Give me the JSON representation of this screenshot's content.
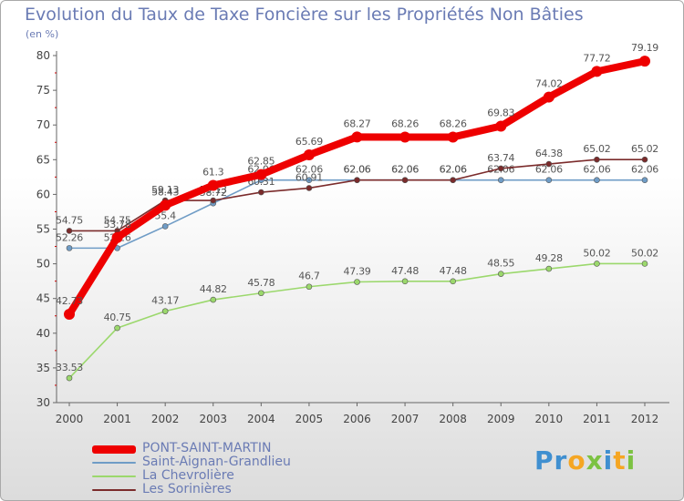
{
  "chart_data": {
    "type": "line",
    "title": "Evolution du Taux de Taxe Foncière sur les Propriétés Non Bâties",
    "ylabel": "(en %)",
    "xlabel": "",
    "ylim": [
      30,
      80
    ],
    "yticks": [
      30,
      35,
      40,
      45,
      50,
      55,
      60,
      65,
      70,
      75,
      80
    ],
    "categories": [
      "2000",
      "2001",
      "2002",
      "2003",
      "2004",
      "2005",
      "2006",
      "2007",
      "2008",
      "2009",
      "2010",
      "2011",
      "2012"
    ],
    "series": [
      {
        "name": "Saint-Aignan-Grandlieu",
        "color": "#6f9cc6",
        "values": [
          52.26,
          52.26,
          55.4,
          58.72,
          62.06,
          62.06,
          62.06,
          62.06,
          62.06,
          62.06,
          62.06,
          62.06,
          62.06
        ],
        "labels": [
          "52.26",
          "52.26",
          "55.4",
          "58.72",
          "62.06",
          "62.06",
          "62.06",
          "62.06",
          "62.06",
          "62.06",
          "62.06",
          "62.06",
          "62.06"
        ]
      },
      {
        "name": "La Chevrolière",
        "color": "#9bd86c",
        "values": [
          33.53,
          40.75,
          43.17,
          44.82,
          45.78,
          46.7,
          47.39,
          47.48,
          47.48,
          48.55,
          49.28,
          50.02,
          50.02
        ],
        "labels": [
          "33.53",
          "40.75",
          "43.17",
          "44.82",
          "45.78",
          "46.7",
          "47.39",
          "47.48",
          "47.48",
          "48.55",
          "49.28",
          "50.02",
          "50.02"
        ]
      },
      {
        "name": "Les Sorinières",
        "color": "#7b2b2b",
        "values": [
          54.75,
          54.75,
          59.13,
          59.13,
          60.31,
          60.91,
          62.06,
          62.06,
          62.06,
          63.74,
          64.38,
          65.02,
          65.02
        ],
        "labels": [
          "54.75",
          "54.75",
          "59.13",
          "59.13",
          "60.31",
          "60.91",
          "62.06",
          "62.06",
          "62.06",
          "63.74",
          "64.38",
          "65.02",
          "65.02"
        ]
      },
      {
        "name": "PONT-SAINT-MARTIN",
        "color": "#ee0000",
        "values": [
          42.73,
          53.78,
          58.43,
          61.3,
          62.85,
          65.69,
          68.27,
          68.26,
          68.26,
          69.83,
          74.02,
          77.72,
          79.19
        ],
        "labels": [
          "42.73",
          "53.78",
          "58.43",
          "61.3",
          "62.85",
          "65.69",
          "68.27",
          "68.26",
          "68.26",
          "69.83",
          "74.02",
          "77.72",
          "79.19"
        ]
      }
    ],
    "legend": [
      {
        "name": "PONT-SAINT-MARTIN",
        "color": "#ee0000"
      },
      {
        "name": "Saint-Aignan-Grandlieu",
        "color": "#6f9cc6"
      },
      {
        "name": "La Chevrolière",
        "color": "#9bd86c"
      },
      {
        "name": "Les Sorinières",
        "color": "#7b2b2b"
      }
    ],
    "legend_placement": "bottom-left",
    "grid": false
  },
  "logo": {
    "text": "Proxiti",
    "letters": [
      "P",
      "r",
      "o",
      "x",
      "i",
      "t",
      "i"
    ]
  }
}
